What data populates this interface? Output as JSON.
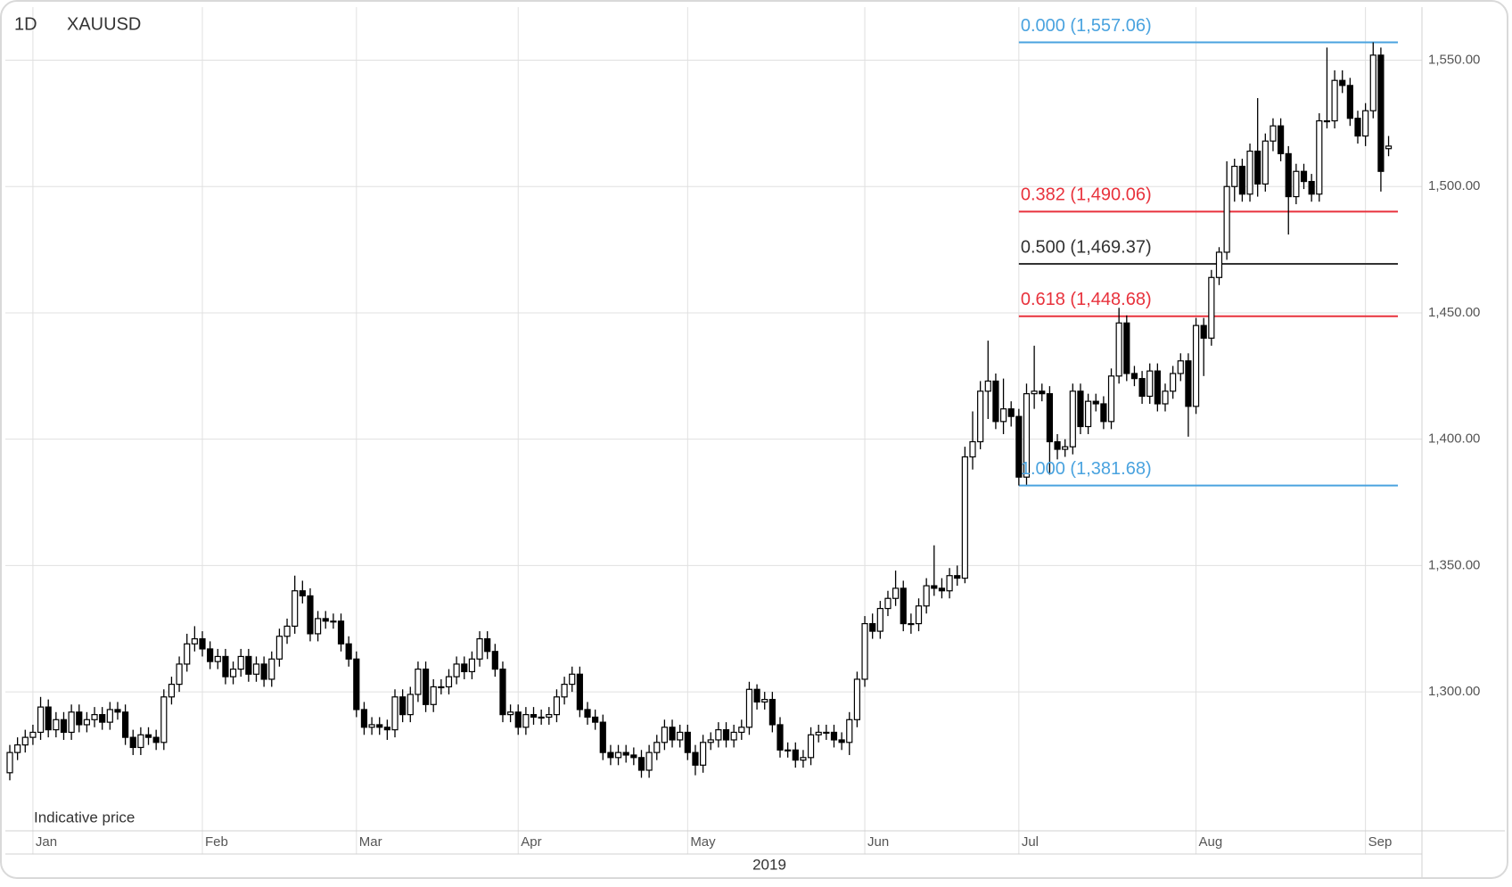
{
  "chart_data": {
    "type": "candlestick",
    "interval": "1D",
    "title": "XAUUSD",
    "note": "Indicative price",
    "x_title": "2019",
    "categories": [
      null,
      null,
      null,
      "Jan",
      null,
      null,
      null,
      null,
      null,
      null,
      null,
      null,
      null,
      null,
      null,
      null,
      null,
      null,
      null,
      null,
      null,
      null,
      null,
      null,
      null,
      "Feb",
      null,
      null,
      null,
      null,
      null,
      null,
      null,
      null,
      null,
      null,
      null,
      null,
      null,
      null,
      null,
      null,
      null,
      null,
      null,
      "Mar",
      null,
      null,
      null,
      null,
      null,
      null,
      null,
      null,
      null,
      null,
      null,
      null,
      null,
      null,
      null,
      null,
      null,
      null,
      null,
      null,
      "Apr",
      null,
      null,
      null,
      null,
      null,
      null,
      null,
      null,
      null,
      null,
      null,
      null,
      null,
      null,
      null,
      null,
      null,
      null,
      null,
      null,
      null,
      "May",
      null,
      null,
      null,
      null,
      null,
      null,
      null,
      null,
      null,
      null,
      null,
      null,
      null,
      null,
      null,
      null,
      null,
      null,
      null,
      null,
      null,
      null,
      "Jun",
      null,
      null,
      null,
      null,
      null,
      null,
      null,
      null,
      null,
      null,
      null,
      null,
      null,
      null,
      null,
      null,
      null,
      null,
      null,
      "Jul",
      null,
      null,
      null,
      null,
      null,
      null,
      null,
      null,
      null,
      null,
      null,
      null,
      null,
      null,
      null,
      null,
      null,
      null,
      null,
      null,
      null,
      null,
      "Aug",
      null,
      null,
      null,
      null,
      null,
      null,
      null,
      null,
      null,
      null,
      null,
      null,
      null,
      null,
      null,
      null,
      null,
      null,
      null,
      null,
      null,
      "Sep",
      null,
      null,
      null
    ],
    "series": [
      {
        "name": "XAUUSD",
        "up_color": "#ffffff",
        "down_color": "#000000",
        "open": [
          1268,
          1276,
          1279,
          1282,
          1284,
          1294,
          1285,
          1289,
          1284,
          1292,
          1287,
          1289,
          1291,
          1288,
          1293,
          1292,
          1282,
          1278,
          1283,
          1282,
          1280,
          1298,
          1303,
          1311,
          1319,
          1321,
          1317,
          1312,
          1314,
          1306,
          1309,
          1314,
          1307,
          1311,
          1305,
          1313,
          1322,
          1326,
          1340,
          1338,
          1323,
          1329,
          1328,
          1328,
          1319,
          1313,
          1293,
          1286,
          1287,
          1286,
          1285,
          1298,
          1291,
          1299,
          1309,
          1295,
          1302,
          1302,
          1306,
          1311,
          1308,
          1313,
          1321,
          1316,
          1309,
          1291,
          1292,
          1286,
          1291,
          1290,
          1290,
          1291,
          1298,
          1303,
          1307,
          1293,
          1290,
          1288,
          1276,
          1274,
          1276,
          1275,
          1274,
          1269,
          1276,
          1280,
          1286,
          1281,
          1284,
          1276,
          1271,
          1280,
          1281,
          1285,
          1281,
          1284,
          1286,
          1301,
          1296,
          1297,
          1287,
          1277,
          1277,
          1273,
          1274,
          1283,
          1284,
          1284,
          1281,
          1280,
          1289,
          1305,
          1327,
          1324,
          1333,
          1337,
          1341,
          1327,
          1327,
          1334,
          1342,
          1341,
          1340,
          1346,
          1345,
          1393,
          1399,
          1419,
          1423,
          1407,
          1412,
          1409,
          1385,
          1418,
          1419,
          1418,
          1399,
          1396,
          1397,
          1419,
          1405,
          1415,
          1414,
          1407,
          1425,
          1446,
          1426,
          1424,
          1417,
          1427,
          1414,
          1419,
          1426,
          1431,
          1413,
          1445,
          1440,
          1464,
          1474,
          1500,
          1508,
          1497,
          1514,
          1501,
          1518,
          1524,
          1513,
          1496,
          1506,
          1502,
          1497,
          1526,
          1526,
          1542,
          1540,
          1527,
          1520,
          1530,
          1552,
          1515
        ],
        "high": [
          1279,
          1282,
          1285,
          1287,
          1298,
          1297,
          1292,
          1292,
          1295,
          1295,
          1292,
          1294,
          1294,
          1296,
          1296,
          1295,
          1285,
          1286,
          1286,
          1285,
          1301,
          1306,
          1314,
          1323,
          1326,
          1324,
          1320,
          1317,
          1317,
          1312,
          1317,
          1317,
          1314,
          1314,
          1316,
          1325,
          1329,
          1346,
          1344,
          1341,
          1332,
          1332,
          1331,
          1331,
          1322,
          1316,
          1296,
          1290,
          1290,
          1289,
          1301,
          1301,
          1302,
          1312,
          1312,
          1305,
          1305,
          1309,
          1314,
          1314,
          1316,
          1324,
          1324,
          1319,
          1312,
          1295,
          1295,
          1294,
          1294,
          1293,
          1294,
          1301,
          1306,
          1310,
          1310,
          1296,
          1293,
          1291,
          1279,
          1279,
          1279,
          1278,
          1277,
          1279,
          1283,
          1289,
          1289,
          1287,
          1287,
          1279,
          1283,
          1284,
          1288,
          1288,
          1287,
          1289,
          1304,
          1303,
          1300,
          1300,
          1290,
          1280,
          1280,
          1277,
          1286,
          1287,
          1287,
          1287,
          1284,
          1292,
          1308,
          1330,
          1331,
          1336,
          1340,
          1348,
          1344,
          1331,
          1337,
          1345,
          1358,
          1345,
          1349,
          1350,
          1397,
          1411,
          1423,
          1439,
          1426,
          1424,
          1415,
          1412,
          1422,
          1437,
          1422,
          1421,
          1402,
          1400,
          1422,
          1422,
          1418,
          1418,
          1417,
          1428,
          1452,
          1449,
          1429,
          1427,
          1430,
          1430,
          1422,
          1429,
          1434,
          1434,
          1448,
          1448,
          1467,
          1476,
          1510,
          1511,
          1511,
          1517,
          1535,
          1521,
          1527,
          1527,
          1516,
          1509,
          1509,
          1505,
          1529,
          1555,
          1546,
          1546,
          1543,
          1530,
          1533,
          1557.06,
          1555,
          1520
        ],
        "low": [
          1265,
          1273,
          1276,
          1279,
          1281,
          1282,
          1282,
          1281,
          1281,
          1284,
          1284,
          1286,
          1285,
          1285,
          1289,
          1279,
          1275,
          1275,
          1279,
          1277,
          1277,
          1295,
          1300,
          1308,
          1316,
          1314,
          1309,
          1309,
          1303,
          1303,
          1306,
          1304,
          1304,
          1302,
          1302,
          1310,
          1319,
          1323,
          1335,
          1320,
          1320,
          1325,
          1325,
          1316,
          1310,
          1290,
          1283,
          1283,
          1283,
          1281,
          1282,
          1288,
          1288,
          1296,
          1292,
          1292,
          1299,
          1299,
          1303,
          1305,
          1305,
          1310,
          1313,
          1306,
          1288,
          1288,
          1283,
          1283,
          1287,
          1287,
          1287,
          1288,
          1295,
          1300,
          1290,
          1287,
          1285,
          1273,
          1271,
          1271,
          1272,
          1271,
          1266,
          1266,
          1273,
          1277,
          1278,
          1278,
          1273,
          1267,
          1268,
          1277,
          1278,
          1278,
          1278,
          1281,
          1283,
          1293,
          1293,
          1284,
          1274,
          1274,
          1270,
          1270,
          1271,
          1280,
          1281,
          1278,
          1277,
          1275,
          1286,
          1302,
          1321,
          1321,
          1330,
          1334,
          1324,
          1323,
          1324,
          1331,
          1338,
          1337,
          1337,
          1342,
          1343,
          1388,
          1396,
          1408,
          1404,
          1402,
          1405,
          1381.68,
          1382,
          1412,
          1415,
          1386,
          1392,
          1393,
          1394,
          1402,
          1402,
          1411,
          1404,
          1404,
          1422,
          1423,
          1421,
          1414,
          1414,
          1411,
          1411,
          1416,
          1423,
          1401,
          1410,
          1425,
          1437,
          1461,
          1471,
          1494,
          1494,
          1494,
          1496,
          1498,
          1514,
          1510,
          1481,
          1493,
          1499,
          1494,
          1494,
          1523,
          1523,
          1537,
          1524,
          1517,
          1516,
          1527,
          1498,
          1512
        ],
        "close": [
          1276,
          1279,
          1282,
          1284,
          1294,
          1285,
          1289,
          1284,
          1292,
          1287,
          1289,
          1291,
          1288,
          1293,
          1292,
          1282,
          1278,
          1283,
          1282,
          1280,
          1298,
          1303,
          1311,
          1319,
          1321,
          1317,
          1312,
          1314,
          1306,
          1309,
          1314,
          1307,
          1311,
          1305,
          1313,
          1322,
          1326,
          1340,
          1338,
          1323,
          1329,
          1328,
          1328,
          1319,
          1313,
          1293,
          1286,
          1287,
          1286,
          1285,
          1298,
          1291,
          1299,
          1309,
          1295,
          1302,
          1302,
          1306,
          1311,
          1308,
          1313,
          1321,
          1316,
          1309,
          1291,
          1292,
          1286,
          1291,
          1290,
          1290,
          1291,
          1298,
          1303,
          1307,
          1293,
          1290,
          1288,
          1276,
          1274,
          1276,
          1275,
          1274,
          1269,
          1276,
          1280,
          1286,
          1281,
          1284,
          1276,
          1271,
          1280,
          1281,
          1285,
          1281,
          1284,
          1286,
          1301,
          1296,
          1297,
          1287,
          1277,
          1277,
          1273,
          1274,
          1283,
          1284,
          1284,
          1281,
          1280,
          1289,
          1305,
          1327,
          1324,
          1333,
          1337,
          1341,
          1327,
          1327,
          1334,
          1342,
          1341,
          1340,
          1346,
          1345,
          1393,
          1399,
          1419,
          1423,
          1407,
          1412,
          1409,
          1385,
          1418,
          1419,
          1418,
          1399,
          1396,
          1397,
          1419,
          1405,
          1415,
          1414,
          1407,
          1425,
          1446,
          1426,
          1424,
          1417,
          1427,
          1414,
          1419,
          1426,
          1431,
          1413,
          1445,
          1440,
          1464,
          1474,
          1500,
          1508,
          1497,
          1514,
          1501,
          1518,
          1524,
          1513,
          1496,
          1506,
          1502,
          1497,
          1526,
          1526,
          1542,
          1540,
          1527,
          1520,
          1530,
          1552,
          1506,
          1516
        ]
      }
    ],
    "fib_levels": [
      {
        "label": "0.000 (1,557.06)",
        "value": 1557.06,
        "color": "#4aa3df"
      },
      {
        "label": "0.382 (1,490.06)",
        "value": 1490.06,
        "color": "#e8323c"
      },
      {
        "label": "0.500 (1,469.37)",
        "value": 1469.37,
        "color": "#333333"
      },
      {
        "label": "0.618 (1,448.68)",
        "value": 1448.68,
        "color": "#e8323c"
      },
      {
        "label": "1.000 (1,381.68)",
        "value": 1381.68,
        "color": "#4aa3df"
      }
    ],
    "ylim": [
      1245,
      1571
    ],
    "yticks": [
      {
        "value": 1300,
        "label": "1,300.00"
      },
      {
        "value": 1350,
        "label": "1,350.00"
      },
      {
        "value": 1400,
        "label": "1,400.00"
      },
      {
        "value": 1450,
        "label": "1,450.00"
      },
      {
        "value": 1500,
        "label": "1,500.00"
      },
      {
        "value": 1550,
        "label": "1,550.00"
      }
    ],
    "grid": true
  }
}
